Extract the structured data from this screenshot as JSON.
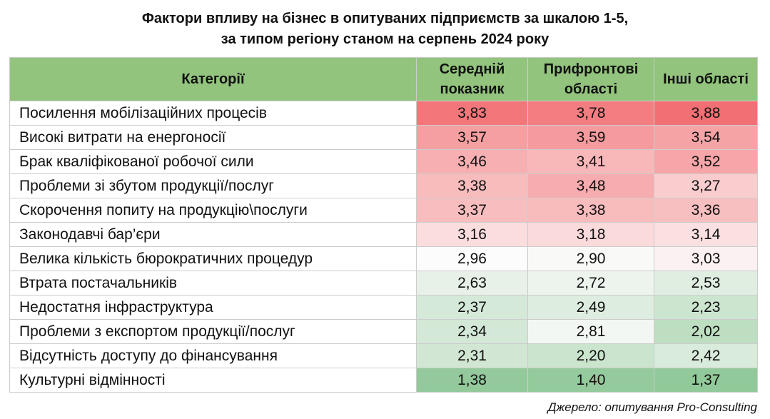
{
  "title_line1": "Фактори впливу на бізнес в опитуваних підприємств за шкалою 1-5,",
  "title_line2": "за типом регіону станом на серпень 2024 року",
  "source": "Джерело: опитування Pro-Consulting",
  "heat_colors": {
    "high": "#f26f73",
    "mid": "#fdfcfc",
    "low": "#92c99a"
  },
  "chart_data": {
    "type": "table",
    "columns": [
      "Категорії",
      "Середній показник",
      "Прифронтові області",
      "Інші області"
    ],
    "rows": [
      {
        "category": "Посилення мобілізаційних процесів",
        "values": [
          3.83,
          3.78,
          3.88
        ],
        "labels": [
          "3,83",
          "3,78",
          "3,88"
        ]
      },
      {
        "category": "Високі витрати на енергоносії",
        "values": [
          3.57,
          3.59,
          3.54
        ],
        "labels": [
          "3,57",
          "3,59",
          "3,54"
        ]
      },
      {
        "category": "Брак кваліфікованої робочої сили",
        "values": [
          3.46,
          3.41,
          3.52
        ],
        "labels": [
          "3,46",
          "3,41",
          "3,52"
        ]
      },
      {
        "category": "Проблеми зі збутом продукції/послуг",
        "values": [
          3.38,
          3.48,
          3.27
        ],
        "labels": [
          "3,38",
          "3,48",
          "3,27"
        ]
      },
      {
        "category": "Скорочення попиту на продукцію\\послуги",
        "values": [
          3.37,
          3.38,
          3.36
        ],
        "labels": [
          "3,37",
          "3,38",
          "3,36"
        ]
      },
      {
        "category": "Законодавчі бар’єри",
        "values": [
          3.16,
          3.18,
          3.14
        ],
        "labels": [
          "3,16",
          "3,18",
          "3,14"
        ]
      },
      {
        "category": "Велика кількість бюрократичних процедур",
        "values": [
          2.96,
          2.9,
          3.03
        ],
        "labels": [
          "2,96",
          "2,90",
          "3,03"
        ]
      },
      {
        "category": "Втрата постачальників",
        "values": [
          2.63,
          2.72,
          2.53
        ],
        "labels": [
          "2,63",
          "2,72",
          "2,53"
        ]
      },
      {
        "category": "Недостатня інфраструктура",
        "values": [
          2.37,
          2.49,
          2.23
        ],
        "labels": [
          "2,37",
          "2,49",
          "2,23"
        ]
      },
      {
        "category": "Проблеми з експортом продукції/послуг",
        "values": [
          2.34,
          2.81,
          2.02
        ],
        "labels": [
          "2,34",
          "2,81",
          "2,02"
        ]
      },
      {
        "category": "Відсутність доступу до фінансування",
        "values": [
          2.31,
          2.2,
          2.42
        ],
        "labels": [
          "2,31",
          "2,20",
          "2,42"
        ]
      },
      {
        "category": "Культурні відмінності",
        "values": [
          1.38,
          1.4,
          1.37
        ],
        "labels": [
          "1,38",
          "1,40",
          "1,37"
        ]
      }
    ]
  }
}
